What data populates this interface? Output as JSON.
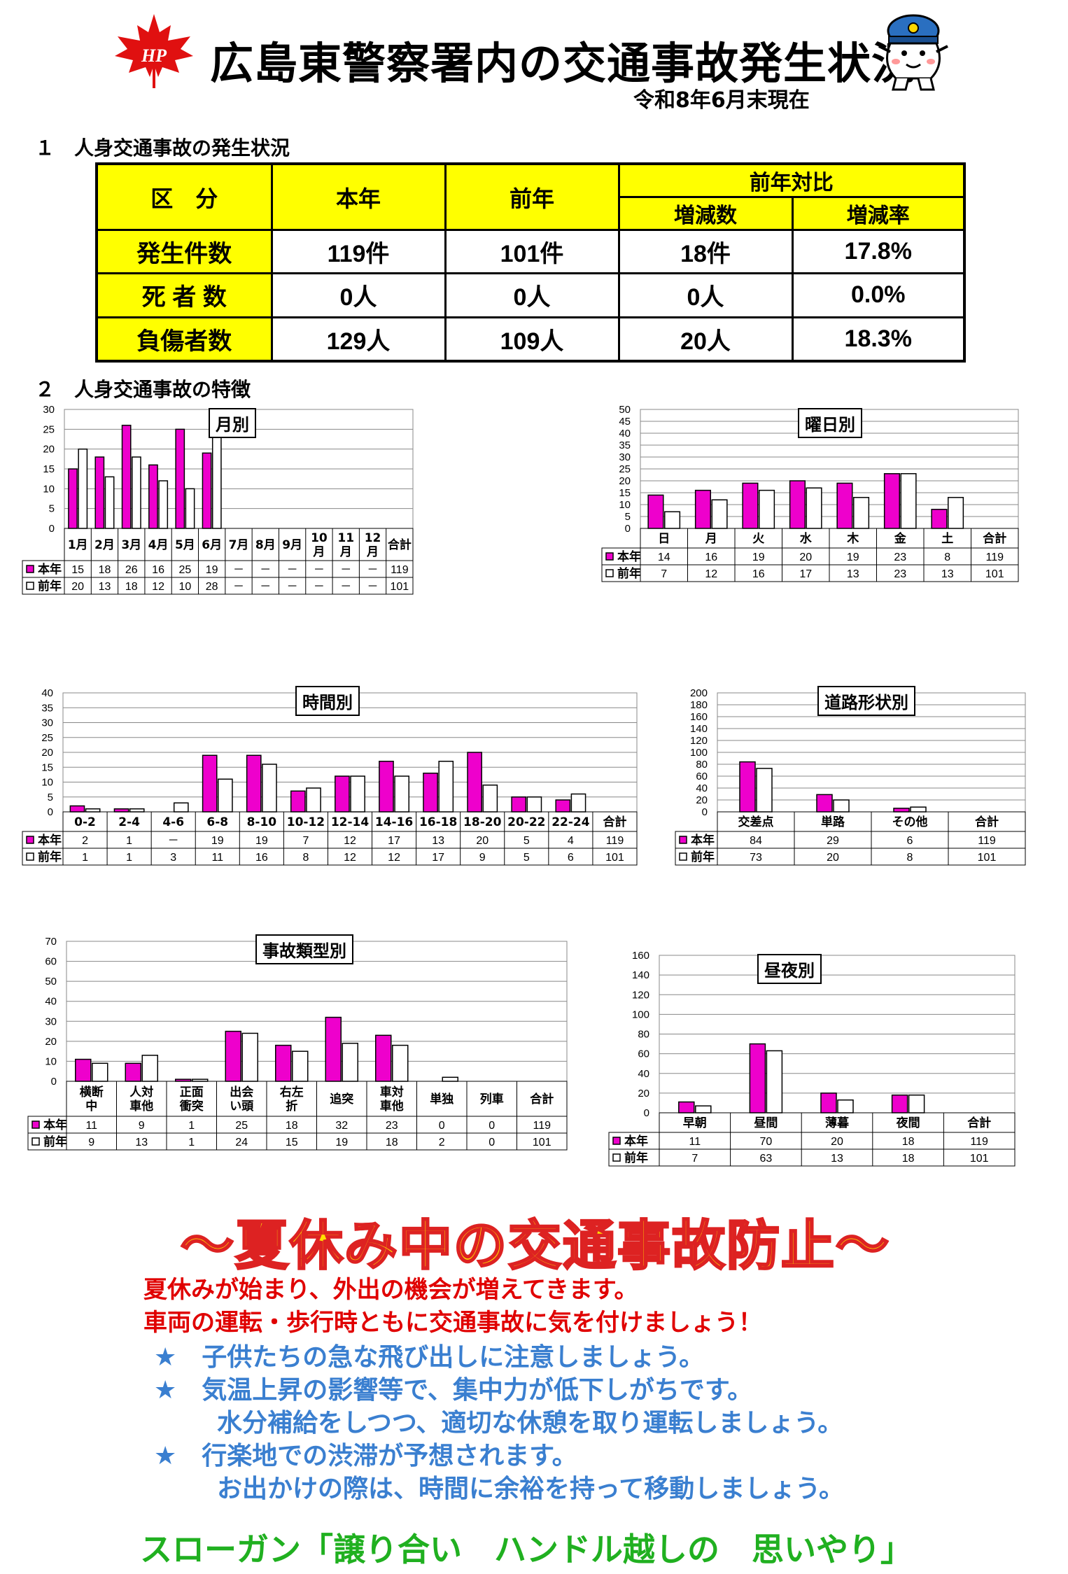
{
  "header": {
    "title": "広島東警察署内の交通事故発生状況",
    "as_of": "令和8年6月末現在",
    "logo_text": "HP"
  },
  "section1": {
    "heading": "１　人身交通事故の発生状況",
    "table": {
      "col_category": "区　分",
      "col_this_year": "本年",
      "col_last_year": "前年",
      "col_compare": "前年対比",
      "col_change": "増減数",
      "col_rate": "増減率",
      "rows": [
        {
          "label": "発生件数",
          "this_year": "119件",
          "last_year": "101件",
          "change": "18件",
          "rate": "17.8%"
        },
        {
          "label": "死 者 数",
          "this_year": "0人",
          "last_year": "0人",
          "change": "0人",
          "rate": "0.0%"
        },
        {
          "label": "負傷者数",
          "this_year": "129人",
          "last_year": "109人",
          "change": "20人",
          "rate": "18.3%"
        }
      ]
    }
  },
  "section2": {
    "heading": "２　人身交通事故の特徴"
  },
  "colors": {
    "this_year": "#ee00cc",
    "last_year": "#ffffff",
    "header_fill": "#ffff00"
  },
  "chart_data": [
    {
      "id": "monthly",
      "type": "bar",
      "title": "月別",
      "ylim": [
        0,
        30
      ],
      "yticks": [
        0,
        5,
        10,
        15,
        20,
        25,
        30
      ],
      "categories": [
        "1月",
        "2月",
        "3月",
        "4月",
        "5月",
        "6月",
        "7月",
        "8月",
        "9月",
        "10\n月",
        "11\n月",
        "12\n月"
      ],
      "total_label": "合計",
      "series": [
        {
          "name": "本年",
          "values": [
            15,
            18,
            26,
            16,
            25,
            19,
            null,
            null,
            null,
            null,
            null,
            null
          ],
          "labels": [
            "15",
            "18",
            "26",
            "16",
            "25",
            "19",
            "－",
            "－",
            "－",
            "－",
            "－",
            "－"
          ],
          "total": "119"
        },
        {
          "name": "前年",
          "values": [
            20,
            13,
            18,
            12,
            10,
            28,
            null,
            null,
            null,
            null,
            null,
            null
          ],
          "labels": [
            "20",
            "13",
            "18",
            "12",
            "10",
            "28",
            "－",
            "－",
            "－",
            "－",
            "－",
            "－"
          ],
          "total": "101"
        }
      ]
    },
    {
      "id": "weekday",
      "type": "bar",
      "title": "曜日別",
      "ylim": [
        0,
        50
      ],
      "yticks": [
        0,
        5,
        10,
        15,
        20,
        25,
        30,
        35,
        40,
        45,
        50
      ],
      "categories": [
        "日",
        "月",
        "火",
        "水",
        "木",
        "金",
        "土"
      ],
      "total_label": "合計",
      "series": [
        {
          "name": "本年",
          "values": [
            14,
            16,
            19,
            20,
            19,
            23,
            8
          ],
          "labels": [
            "14",
            "16",
            "19",
            "20",
            "19",
            "23",
            "8"
          ],
          "total": "119"
        },
        {
          "name": "前年",
          "values": [
            7,
            12,
            16,
            17,
            13,
            23,
            13
          ],
          "labels": [
            "7",
            "12",
            "16",
            "17",
            "13",
            "23",
            "13"
          ],
          "total": "101"
        }
      ]
    },
    {
      "id": "hourly",
      "type": "bar",
      "title": "時間別",
      "ylim": [
        0,
        40
      ],
      "yticks": [
        0,
        5,
        10,
        15,
        20,
        25,
        30,
        35,
        40
      ],
      "categories": [
        "0-2",
        "2-4",
        "4-6",
        "6-8",
        "8-10",
        "10-12",
        "12-14",
        "14-16",
        "16-18",
        "18-20",
        "20-22",
        "22-24"
      ],
      "total_label": "合計",
      "series": [
        {
          "name": "本年",
          "values": [
            2,
            1,
            null,
            19,
            19,
            7,
            12,
            17,
            13,
            20,
            5,
            4
          ],
          "labels": [
            "2",
            "1",
            "－",
            "19",
            "19",
            "7",
            "12",
            "17",
            "13",
            "20",
            "5",
            "4"
          ],
          "total": "119"
        },
        {
          "name": "前年",
          "values": [
            1,
            1,
            3,
            11,
            16,
            8,
            12,
            12,
            17,
            9,
            5,
            6
          ],
          "labels": [
            "1",
            "1",
            "3",
            "11",
            "16",
            "8",
            "12",
            "12",
            "17",
            "9",
            "5",
            "6"
          ],
          "total": "101"
        }
      ]
    },
    {
      "id": "road",
      "type": "bar",
      "title": "道路形状別",
      "ylim": [
        0,
        200
      ],
      "yticks": [
        0,
        20,
        40,
        60,
        80,
        100,
        120,
        140,
        160,
        180,
        200
      ],
      "categories": [
        "交差点",
        "単路",
        "その他"
      ],
      "total_label": "合計",
      "series": [
        {
          "name": "本年",
          "values": [
            84,
            29,
            6
          ],
          "labels": [
            "84",
            "29",
            "6"
          ],
          "total": "119"
        },
        {
          "name": "前年",
          "values": [
            73,
            20,
            8
          ],
          "labels": [
            "73",
            "20",
            "8"
          ],
          "total": "101"
        }
      ]
    },
    {
      "id": "type",
      "type": "bar",
      "title": "事故類型別",
      "ylim": [
        0,
        70
      ],
      "yticks": [
        0,
        10,
        20,
        30,
        40,
        50,
        60,
        70
      ],
      "categories": [
        "横断\n中",
        "人対\n車他",
        "正面\n衝突",
        "出会\nい頭",
        "右左\n折",
        "追突",
        "車対\n車他",
        "単独",
        "列車"
      ],
      "total_label": "合計",
      "series": [
        {
          "name": "本年",
          "values": [
            11,
            9,
            1,
            25,
            18,
            32,
            23,
            0,
            0
          ],
          "labels": [
            "11",
            "9",
            "1",
            "25",
            "18",
            "32",
            "23",
            "0",
            "0"
          ],
          "total": "119"
        },
        {
          "name": "前年",
          "values": [
            9,
            13,
            1,
            24,
            15,
            19,
            18,
            2,
            0
          ],
          "labels": [
            "9",
            "13",
            "1",
            "24",
            "15",
            "19",
            "18",
            "2",
            "0"
          ],
          "total": "101"
        }
      ]
    },
    {
      "id": "daynight",
      "type": "bar",
      "title": "昼夜別",
      "ylim": [
        0,
        160
      ],
      "yticks": [
        0,
        20,
        40,
        60,
        80,
        100,
        120,
        140,
        160
      ],
      "categories": [
        "早朝",
        "昼間",
        "薄暮",
        "夜間"
      ],
      "total_label": "合計",
      "series": [
        {
          "name": "本年",
          "values": [
            11,
            70,
            20,
            18
          ],
          "labels": [
            "11",
            "70",
            "20",
            "18"
          ],
          "total": "119"
        },
        {
          "name": "前年",
          "values": [
            7,
            63,
            13,
            18
          ],
          "labels": [
            "7",
            "63",
            "13",
            "18"
          ],
          "total": "101"
        }
      ]
    }
  ],
  "notice": {
    "headline": "～夏休み中の交通事故防止～",
    "line1": "夏休みが始まり、外出の機会が増えてきます。",
    "line2": "車両の運転・歩行時ともに交通事故に気を付けましょう！",
    "bullet1": "★　子供たちの急な飛び出しに注意しましょう。",
    "bullet2": "★　気温上昇の影響等で、集中力が低下しがちです。",
    "bullet2b": "水分補給をしつつ、適切な休憩を取り運転しましょう。",
    "bullet3": "★　行楽地での渋滞が予想されます。",
    "bullet3b": "お出かけの際は、時間に余裕を持って移動しましょう。",
    "slogan": "スローガン「譲り合い　ハンドル越しの　思いやり」"
  }
}
